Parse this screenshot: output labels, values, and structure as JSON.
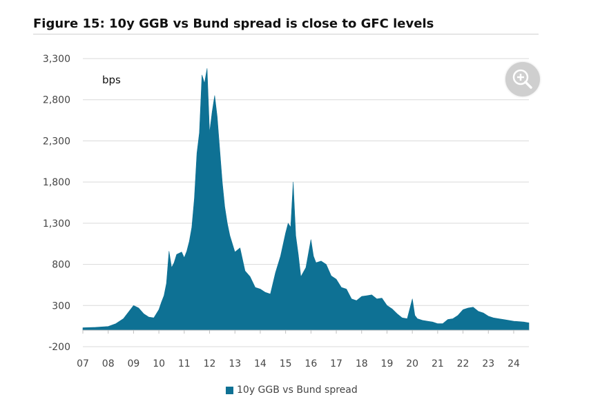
{
  "figure": {
    "title": "Figure 15: 10y GGB vs Bund spread is close to GFC levels",
    "unit_label": "bps",
    "zoom_icon": "zoom-in-icon"
  },
  "colors": {
    "series": "#0e7194",
    "grid": "#d9d9d9",
    "zoom_bg": "#cfcfcf"
  },
  "chart_data": {
    "type": "area",
    "title": "Figure 15: 10y GGB vs Bund spread is close to GFC levels",
    "xlabel": "",
    "ylabel": "bps",
    "ylim": [
      -200,
      3300
    ],
    "yticks": [
      -200,
      300,
      800,
      1300,
      1800,
      2300,
      2800,
      3300
    ],
    "ytick_labels": [
      "-200",
      "300",
      "800",
      "1,300",
      "1,800",
      "2,300",
      "2,800",
      "3,300"
    ],
    "xlim": [
      2007.0,
      2024.6
    ],
    "xticks": [
      2007,
      2008,
      2009,
      2010,
      2011,
      2012,
      2013,
      2014,
      2015,
      2016,
      2017,
      2018,
      2019,
      2020,
      2021,
      2022,
      2023,
      2024
    ],
    "xtick_labels": [
      "07",
      "08",
      "09",
      "10",
      "11",
      "12",
      "13",
      "14",
      "15",
      "16",
      "17",
      "18",
      "19",
      "20",
      "21",
      "22",
      "23",
      "24"
    ],
    "grid": "horizontal",
    "legend_position": "bottom-center",
    "series": [
      {
        "name": "10y GGB vs Bund spread",
        "x": [
          2007.0,
          2007.5,
          2008.0,
          2008.3,
          2008.6,
          2008.8,
          2009.0,
          2009.2,
          2009.4,
          2009.6,
          2009.8,
          2010.0,
          2010.1,
          2010.2,
          2010.3,
          2010.4,
          2010.5,
          2010.6,
          2010.7,
          2010.9,
          2011.0,
          2011.1,
          2011.2,
          2011.3,
          2011.4,
          2011.5,
          2011.6,
          2011.7,
          2011.8,
          2011.9,
          2012.0,
          2012.1,
          2012.2,
          2012.3,
          2012.4,
          2012.5,
          2012.6,
          2012.7,
          2012.8,
          2013.0,
          2013.2,
          2013.4,
          2013.6,
          2013.8,
          2014.0,
          2014.2,
          2014.4,
          2014.6,
          2014.8,
          2015.0,
          2015.1,
          2015.2,
          2015.3,
          2015.4,
          2015.5,
          2015.6,
          2015.8,
          2016.0,
          2016.1,
          2016.2,
          2016.4,
          2016.6,
          2016.8,
          2017.0,
          2017.2,
          2017.4,
          2017.6,
          2017.8,
          2018.0,
          2018.2,
          2018.4,
          2018.6,
          2018.8,
          2019.0,
          2019.2,
          2019.4,
          2019.6,
          2019.8,
          2020.0,
          2020.1,
          2020.2,
          2020.4,
          2020.6,
          2020.8,
          2021.0,
          2021.2,
          2021.4,
          2021.6,
          2021.8,
          2022.0,
          2022.2,
          2022.4,
          2022.6,
          2022.8,
          2023.0,
          2023.2,
          2023.4,
          2023.6,
          2023.8,
          2024.0,
          2024.2,
          2024.4,
          2024.6
        ],
        "values": [
          30,
          35,
          45,
          80,
          140,
          220,
          300,
          270,
          200,
          160,
          150,
          250,
          340,
          420,
          570,
          960,
          760,
          820,
          920,
          950,
          880,
          960,
          1080,
          1250,
          1600,
          2150,
          2400,
          3100,
          3000,
          3180,
          2400,
          2650,
          2850,
          2600,
          2200,
          1800,
          1500,
          1300,
          1150,
          950,
          1000,
          720,
          650,
          520,
          500,
          460,
          440,
          700,
          900,
          1180,
          1300,
          1250,
          1800,
          1150,
          920,
          650,
          760,
          1100,
          900,
          820,
          840,
          800,
          660,
          620,
          520,
          500,
          380,
          360,
          410,
          420,
          430,
          380,
          390,
          300,
          260,
          200,
          150,
          140,
          380,
          180,
          140,
          120,
          110,
          100,
          80,
          80,
          130,
          140,
          180,
          250,
          270,
          280,
          230,
          210,
          170,
          150,
          140,
          130,
          120,
          110,
          105,
          100,
          90
        ]
      }
    ]
  },
  "legend": {
    "label": "10y GGB vs Bund spread"
  }
}
